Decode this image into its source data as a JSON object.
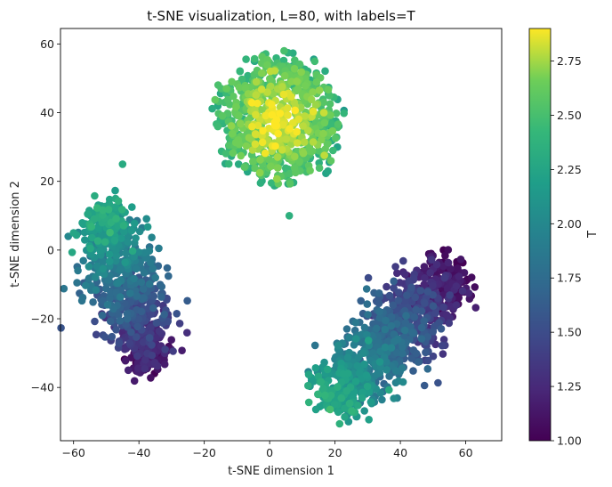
{
  "chart_data": {
    "type": "scatter",
    "title": "t-SNE visualization, L=80, with labels=T",
    "xlabel": "t-SNE dimension 1",
    "ylabel": "t-SNE dimension 2",
    "xlim": [
      -64,
      71
    ],
    "ylim": [
      -55.5,
      64.5
    ],
    "xticks": [
      -60,
      -40,
      -20,
      0,
      20,
      40,
      60
    ],
    "yticks": [
      -40,
      -20,
      0,
      20,
      40,
      60
    ],
    "grid": false,
    "colorbar": {
      "label": "T",
      "range": [
        1.0,
        2.9
      ],
      "ticks": [
        "1.00",
        "1.25",
        "1.50",
        "1.75",
        "2.00",
        "2.25",
        "2.50",
        "2.75"
      ],
      "colormap": "viridis"
    },
    "clusters": [
      {
        "shape": "ellipse",
        "center": [
          3,
          38
        ],
        "spread": [
          20.5,
          20.5
        ],
        "color_value_range": [
          2.3,
          2.9
        ],
        "approx_points": 700
      },
      {
        "shape": "band",
        "start": [
          -52,
          12
        ],
        "end": [
          -36,
          -34
        ],
        "width": 8.5,
        "color_value_range": [
          2.3,
          1.1
        ],
        "approx_points": 750
      },
      {
        "shape": "band",
        "start": [
          18,
          -44
        ],
        "end": [
          57,
          -6
        ],
        "width": 9.5,
        "color_value_range": [
          2.25,
          1.05
        ],
        "approx_points": 950
      }
    ],
    "outliers": [
      {
        "x": 6,
        "y": 10,
        "c": 2.35
      },
      {
        "x": -45,
        "y": 25,
        "c": 2.3
      },
      {
        "x": -60,
        "y": 5,
        "c": 2.25
      }
    ]
  }
}
